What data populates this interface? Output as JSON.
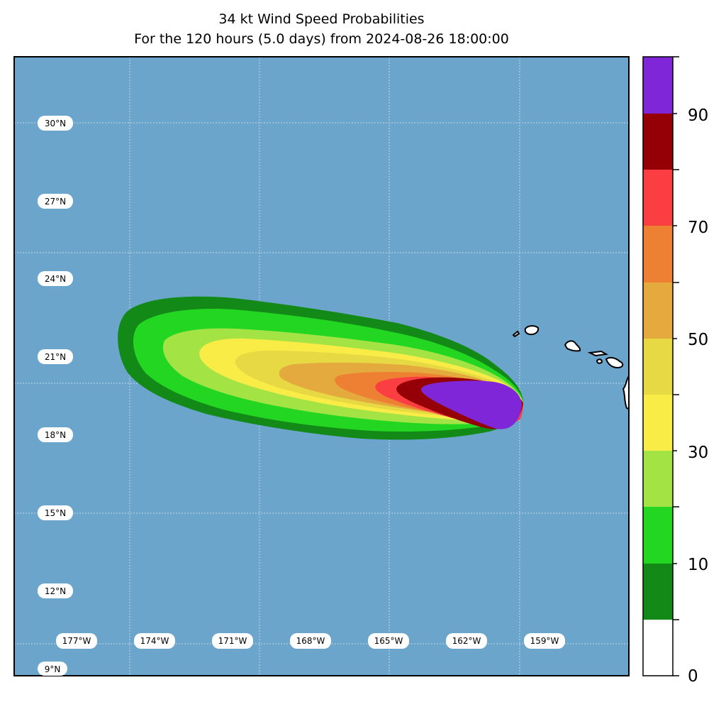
{
  "title": "34 kt Wind Speed Probabilities",
  "subtitle": "For the 120 hours (5.0 days) from 2024-08-26 18:00:00",
  "map": {
    "ocean_color": "#6ba5cb",
    "land_color": "#ffffff",
    "lat_labels": [
      "30°N",
      "27°N",
      "24°N",
      "21°N",
      "18°N",
      "15°N",
      "12°N",
      "9°N"
    ],
    "lon_labels": [
      "177°W",
      "174°W",
      "171°W",
      "168°W",
      "165°W",
      "162°W",
      "159°W"
    ]
  },
  "colorbar": {
    "tick_labels": [
      "0",
      "10",
      "30",
      "50",
      "70",
      "90"
    ],
    "levels": [
      {
        "from": 0,
        "to": 5,
        "color": "#ffffff"
      },
      {
        "from": 5,
        "to": 15,
        "color": "#138a17"
      },
      {
        "from": 15,
        "to": 25,
        "color": "#22d622"
      },
      {
        "from": 25,
        "to": 35,
        "color": "#a3e444"
      },
      {
        "from": 35,
        "to": 45,
        "color": "#faec47"
      },
      {
        "from": 45,
        "to": 55,
        "color": "#e6d944"
      },
      {
        "from": 55,
        "to": 65,
        "color": "#e5aa3d"
      },
      {
        "from": 65,
        "to": 75,
        "color": "#ee8034"
      },
      {
        "from": 75,
        "to": 85,
        "color": "#fb3e42"
      },
      {
        "from": 85,
        "to": 95,
        "color": "#940005"
      },
      {
        "from": 95,
        "to": 100,
        "color": "#7f27d8"
      }
    ]
  }
}
